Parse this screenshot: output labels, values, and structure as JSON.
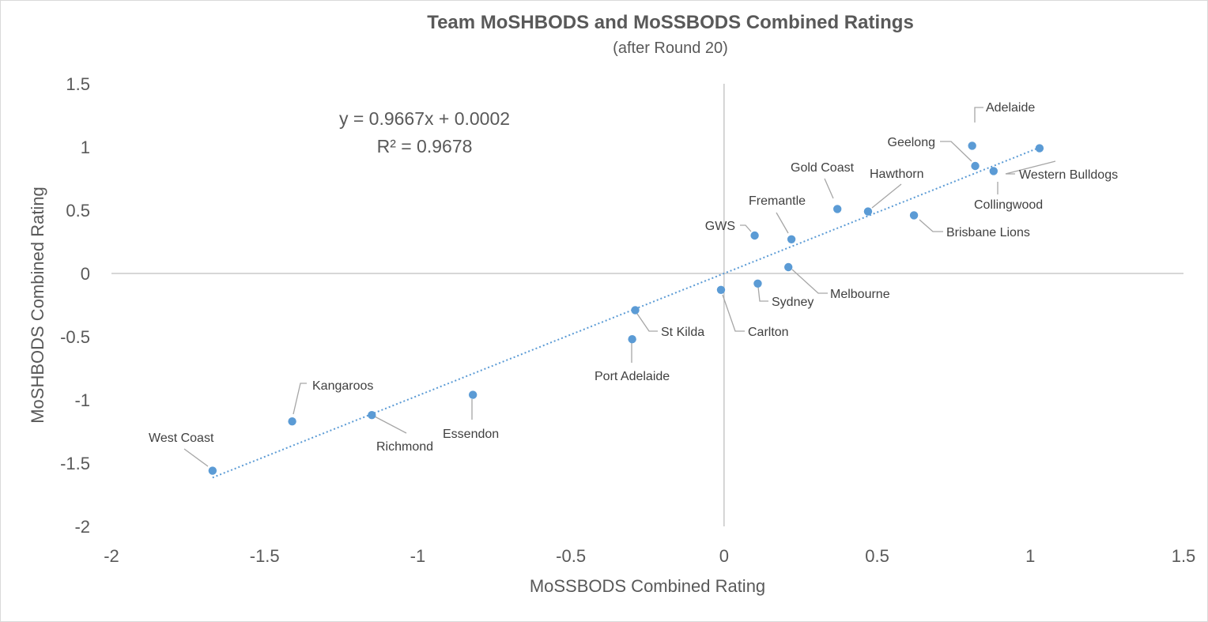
{
  "chart_data": {
    "type": "scatter",
    "title": "Team MoSHBODS and MoSSBODS Combined Ratings",
    "subtitle": "(after Round 20)",
    "xlabel": "MoSSBODS Combined Rating",
    "ylabel": "MoSHBODS Combined Rating",
    "xlim": [
      -2,
      1.5
    ],
    "ylim": [
      -2,
      1.5
    ],
    "xticks": [
      "-2",
      "-1.5",
      "-1",
      "-0.5",
      "0",
      "0.5",
      "1",
      "1.5"
    ],
    "yticks": [
      "1.5",
      "1",
      "0.5",
      "0",
      "-0.5",
      "-1",
      "-1.5",
      "-2"
    ],
    "marker_color": "#5b9bd5",
    "trendline": {
      "slope": 0.9667,
      "intercept": 0.0002,
      "x_range": [
        -1.67,
        1.03
      ],
      "equation": "y = 0.9667x + 0.0002",
      "r_squared": "R² = 0.9678"
    },
    "points": [
      {
        "name": "Adelaide",
        "x": 0.81,
        "y": 1.01
      },
      {
        "name": "Geelong",
        "x": 0.82,
        "y": 0.85
      },
      {
        "name": "Western Bulldogs",
        "x": 1.03,
        "y": 0.99
      },
      {
        "name": "Collingwood",
        "x": 0.88,
        "y": 0.81
      },
      {
        "name": "Gold Coast",
        "x": 0.37,
        "y": 0.51
      },
      {
        "name": "Hawthorn",
        "x": 0.47,
        "y": 0.49
      },
      {
        "name": "Brisbane Lions",
        "x": 0.62,
        "y": 0.46
      },
      {
        "name": "Fremantle",
        "x": 0.22,
        "y": 0.27
      },
      {
        "name": "GWS",
        "x": 0.1,
        "y": 0.3
      },
      {
        "name": "Melbourne",
        "x": 0.21,
        "y": 0.05
      },
      {
        "name": "Sydney",
        "x": 0.11,
        "y": -0.08
      },
      {
        "name": "Carlton",
        "x": -0.01,
        "y": -0.13
      },
      {
        "name": "St Kilda",
        "x": -0.29,
        "y": -0.29
      },
      {
        "name": "Port Adelaide",
        "x": -0.3,
        "y": -0.52
      },
      {
        "name": "Essendon",
        "x": -0.82,
        "y": -0.96
      },
      {
        "name": "Kangaroos",
        "x": -1.41,
        "y": -1.17
      },
      {
        "name": "Richmond",
        "x": -1.15,
        "y": -1.12
      },
      {
        "name": "West Coast",
        "x": -1.67,
        "y": -1.56
      }
    ]
  }
}
